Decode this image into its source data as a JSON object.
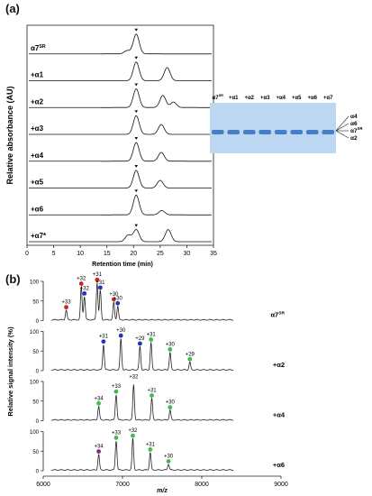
{
  "panel_a": {
    "label": "(a)",
    "ylabel": "Relative absorbance (AU)",
    "xlabel": "Retention time (min)",
    "xticks": [
      "0",
      "5",
      "10",
      "15",
      "20",
      "25",
      "30",
      "35"
    ],
    "traces": [
      {
        "name": "α7",
        "sup": "SR",
        "peaks": [
          [
            20.5,
            0.9
          ],
          [
            18.8,
            0.15
          ]
        ]
      },
      {
        "name": "+α1",
        "sup": "",
        "peaks": [
          [
            20.5,
            0.85
          ],
          [
            26.3,
            0.6
          ]
        ]
      },
      {
        "name": "+α2",
        "sup": "",
        "peaks": [
          [
            20.5,
            0.85
          ],
          [
            25.5,
            0.55
          ],
          [
            27.5,
            0.25
          ]
        ]
      },
      {
        "name": "+α3",
        "sup": "",
        "peaks": [
          [
            20.5,
            0.85
          ],
          [
            25.2,
            0.45
          ]
        ]
      },
      {
        "name": "+α4",
        "sup": "",
        "peaks": [
          [
            20.5,
            0.85
          ],
          [
            25.2,
            0.4
          ]
        ]
      },
      {
        "name": "+α5",
        "sup": "",
        "peaks": [
          [
            20.5,
            0.8
          ],
          [
            25.0,
            0.35
          ]
        ]
      },
      {
        "name": "+α6",
        "sup": "",
        "peaks": [
          [
            20.5,
            0.9
          ],
          [
            25.3,
            0.2
          ]
        ]
      },
      {
        "name": "+α7*",
        "sup": "",
        "peaks": [
          [
            20.5,
            0.55
          ],
          [
            19.0,
            0.3
          ],
          [
            26.5,
            0.55
          ]
        ]
      }
    ]
  },
  "gel": {
    "lanes": [
      {
        "name": "α7",
        "sup": "SR"
      },
      {
        "name": "+α1",
        "sup": ""
      },
      {
        "name": "+α2",
        "sup": ""
      },
      {
        "name": "+α3",
        "sup": ""
      },
      {
        "name": "+α4",
        "sup": ""
      },
      {
        "name": "+α5",
        "sup": ""
      },
      {
        "name": "+α6",
        "sup": ""
      },
      {
        "name": "+α7",
        "sup": ""
      }
    ],
    "band_labels": [
      {
        "name": "α4",
        "sup": ""
      },
      {
        "name": "α6",
        "sup": ""
      },
      {
        "name": "α7",
        "sup": "SR"
      },
      {
        "name": "α2",
        "sup": ""
      }
    ],
    "colors": {
      "background": "#bcd7f2",
      "band": "#2f6fbe"
    }
  },
  "panel_b": {
    "label": "(b)",
    "ylabel": "Relative signal intensity (%)",
    "xlabel": "m/z",
    "xticks": [
      "6000",
      "7000",
      "8000",
      "9000"
    ],
    "yticks": [
      "0",
      "50",
      "100"
    ],
    "colors": {
      "red": "#cc2222",
      "blue": "#2233bb",
      "green": "#44bb44",
      "purple": "#882288"
    },
    "spectra": [
      {
        "name": "α7",
        "sup": "SR",
        "peaks": [
          [
            6290,
            0.25,
            "red",
            "+33"
          ],
          [
            6480,
            0.85,
            "red",
            "+32"
          ],
          [
            6520,
            0.6,
            "blue",
            "+32"
          ],
          [
            6680,
            0.95,
            "red",
            "+31"
          ],
          [
            6720,
            0.75,
            "blue",
            "+31"
          ],
          [
            6890,
            0.45,
            "red",
            "+30"
          ],
          [
            6940,
            0.35,
            "blue",
            "+30"
          ]
        ]
      },
      {
        "name": "+α2",
        "sup": "",
        "peaks": [
          [
            6760,
            0.65,
            "blue",
            "+31"
          ],
          [
            6980,
            0.8,
            "blue",
            "+30"
          ],
          [
            7220,
            0.6,
            "blue",
            "+29"
          ],
          [
            7360,
            0.7,
            "green",
            "+31"
          ],
          [
            7600,
            0.45,
            "green",
            "+30"
          ],
          [
            7850,
            0.2,
            "green",
            "+29"
          ]
        ]
      },
      {
        "name": "+α4",
        "sup": "",
        "peaks": [
          [
            6700,
            0.35,
            "green",
            "+34"
          ],
          [
            6920,
            0.65,
            "green",
            "+33"
          ],
          [
            7140,
            0.9,
            "none",
            "+32"
          ],
          [
            7370,
            0.55,
            "green",
            "+31"
          ],
          [
            7600,
            0.25,
            "green",
            "+30"
          ]
        ]
      },
      {
        "name": "+α6",
        "sup": "",
        "peaks": [
          [
            6700,
            0.4,
            "purple",
            "+34"
          ],
          [
            6920,
            0.75,
            "green",
            "+33"
          ],
          [
            7130,
            0.8,
            "green",
            "+32"
          ],
          [
            7350,
            0.45,
            "green",
            "+31"
          ],
          [
            7580,
            0.15,
            "green",
            "+30"
          ]
        ]
      }
    ]
  }
}
